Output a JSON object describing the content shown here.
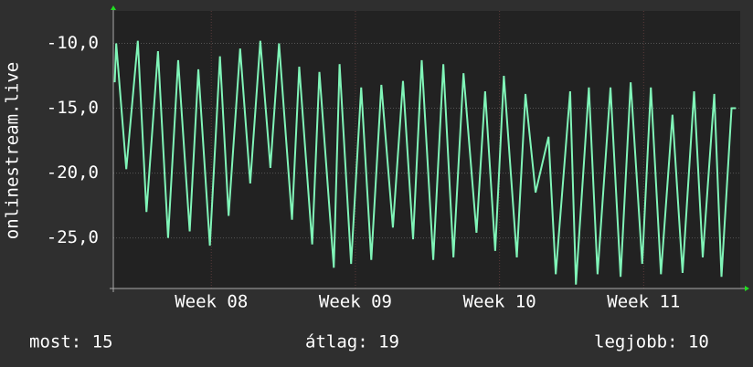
{
  "chart_data": {
    "type": "line",
    "y_label": "onlinestream.live",
    "x": [
      7.83,
      7.84,
      7.91,
      7.99,
      8.05,
      8.13,
      8.2,
      8.27,
      8.35,
      8.41,
      8.49,
      8.56,
      8.62,
      8.7,
      8.77,
      8.84,
      8.91,
      8.97,
      9.06,
      9.11,
      9.2,
      9.25,
      9.35,
      9.39,
      9.47,
      9.54,
      9.61,
      9.68,
      9.76,
      9.83,
      9.9,
      9.96,
      10.04,
      10.11,
      10.18,
      10.25,
      10.34,
      10.4,
      10.47,
      10.53,
      10.62,
      10.68,
      10.75,
      10.84,
      10.89,
      10.99,
      11.03,
      11.12,
      11.18,
      11.27,
      11.34,
      11.41,
      11.49,
      11.55,
      11.62,
      11.7,
      11.77,
      11.85,
      11.91,
      11.99,
      12.04,
      12.11,
      12.14
    ],
    "series": [
      {
        "color": "#80f5b8",
        "values": [
          -13,
          -10,
          -19.7,
          -9.8,
          -23,
          -10.6,
          -25,
          -11.3,
          -24.5,
          -12,
          -25.6,
          -11,
          -23.3,
          -10.4,
          -20.8,
          -9.8,
          -19.6,
          -10,
          -23.6,
          -11.8,
          -25.5,
          -12.2,
          -27.3,
          -11.6,
          -27,
          -13.4,
          -26.7,
          -13.2,
          -24.2,
          -12.9,
          -25.1,
          -11.3,
          -26.7,
          -11.6,
          -26.5,
          -12.3,
          -24.6,
          -13.7,
          -26,
          -12.5,
          -26.5,
          -13.9,
          -21.5,
          -17.2,
          -27.8,
          -13.7,
          -28.6,
          -13.4,
          -27.8,
          -13.4,
          -28,
          -13,
          -27,
          -13.4,
          -27.8,
          -15.5,
          -27.7,
          -13.7,
          -26.5,
          -13.9,
          -28,
          -15,
          -15
        ]
      }
    ],
    "xlim": [
      7.82,
      12.17
    ],
    "xticks": [
      {
        "value": 8.5,
        "label": "Week 08"
      },
      {
        "value": 9.5,
        "label": "Week 09"
      },
      {
        "value": 10.5,
        "label": "Week 10"
      },
      {
        "value": 11.5,
        "label": "Week 11"
      }
    ],
    "ylim": [
      -28.9,
      -7.5
    ],
    "yticks": [
      {
        "value": -10,
        "label": "-10,0"
      },
      {
        "value": -15,
        "label": "-15,0"
      },
      {
        "value": -20,
        "label": "-20,0"
      },
      {
        "value": -25,
        "label": "-25,0"
      }
    ],
    "grid": true,
    "footer": [
      "most: 15",
      "átlag: 19",
      "legjobb: 10"
    ]
  }
}
